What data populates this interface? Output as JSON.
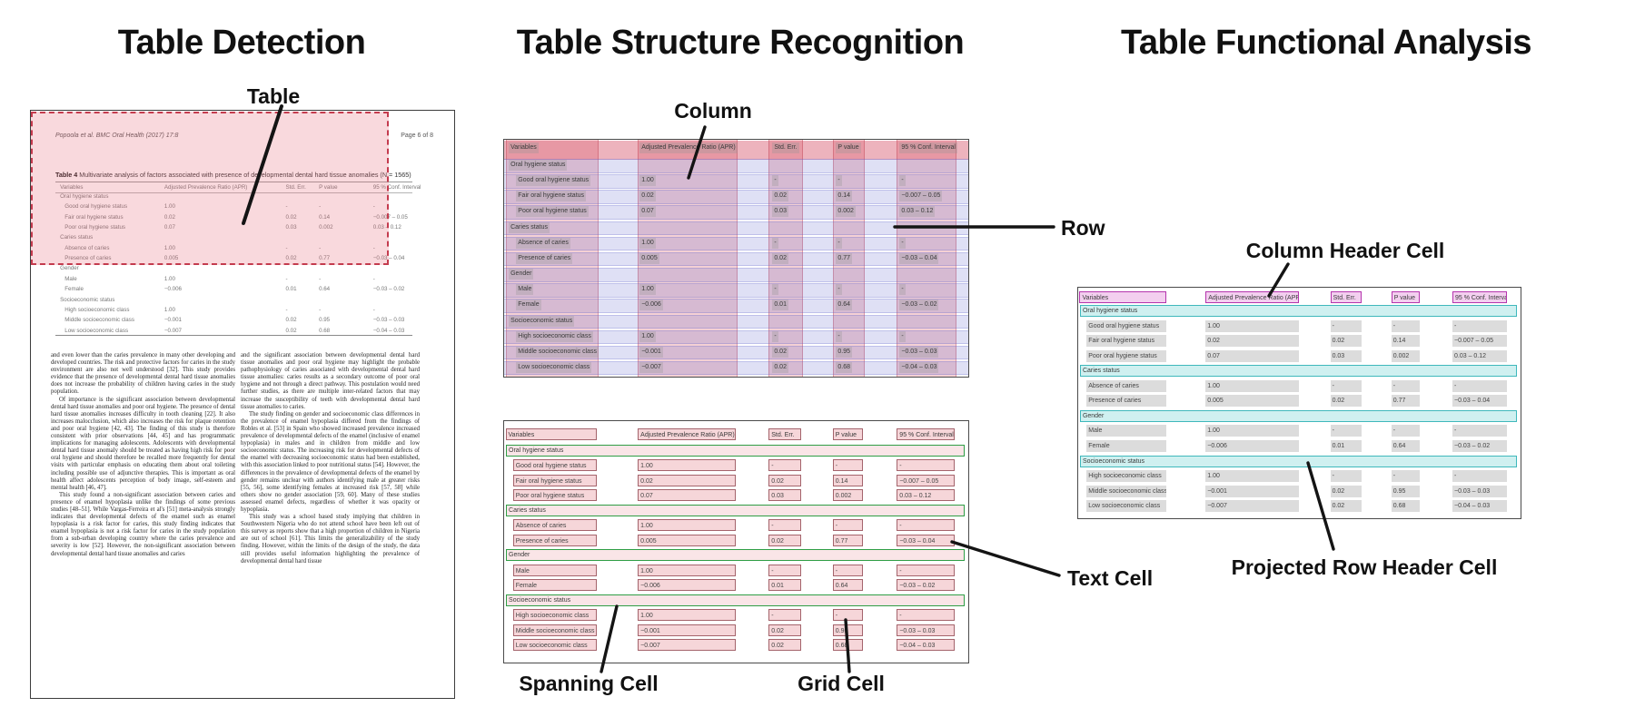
{
  "titles": {
    "detection": "Table Detection",
    "structure": "Table Structure Recognition",
    "functional": "Table Functional Analysis"
  },
  "annotations": {
    "table": "Table",
    "column": "Column",
    "row": "Row",
    "spanning_cell": "Spanning Cell",
    "text_cell": "Text Cell",
    "grid_cell": "Grid Cell",
    "column_header_cell": "Column Header Cell",
    "projected_row_header_cell": "Projected Row Header Cell"
  },
  "document": {
    "running_header_left": "Popoola et al. BMC Oral Health  (2017) 17:8",
    "running_header_right": "Page 6 of 8",
    "caption_label": "Table 4",
    "caption_text": " Multivariate analysis of factors associated with presence of developmental dental hard tissue anomalies (N = 1565)",
    "body_col1": [
      "and even lower than the caries prevalence in many other developing and developed countries. The risk and protective factors for caries in the study environment are also not well understood [32]. This study provides evidence that the presence of developmental dental hard tissue anomalies does not increase the probability of children having caries in the study population.",
      "Of importance is the significant association between developmental dental hard tissue anomalies and poor oral hygiene. The presence of dental hard tissue anomalies increases difficulty in tooth cleaning [22]. It also increases malocclusion, which also increases the risk for plaque retention and poor oral hygiene [42, 43]. The finding of this study is therefore consistent with prior observations [44, 45] and has programmatic implications for managing adolescents. Adolescents with developmental dental hard tissue anomaly should be treated as having high risk for poor oral hygiene and should therefore be recalled more frequently for dental visits with particular emphasis on educating them about oral toileting including possible use of adjunctive therapies. This is important as oral health affect adolescents perception of body image, self-esteem and mental health [46, 47].",
      "This study found a non-significant association between caries and presence of enamel hypoplasia unlike the findings of some previous studies [48–51]. While Vargas-Ferreira et al's [51] meta-analysis strongly indicates that developmental defects of the enamel such as enamel hypoplasia is a risk factor for caries, this study finding indicates that enamel hypoplasia is not a risk factor for caries in the study population from a sub-urban developing country where the caries prevalence and severity is low [52]. However, the non-significant association between developmental dental hard tissue anomalies and caries"
    ],
    "body_col2": [
      "and the significant association between developmental dental hard tissue anomalies and poor oral hygiene may highlight the probable pathophysiology of caries associated with developmental dental hard tissue anomalies: caries results as a secondary outcome of poor oral hygiene and not through a direct pathway. This postulation would need further studies, as there are multiple inter-related factors that may increase the susceptibility of teeth with developmental dental hard tissue anomalies to caries.",
      "The study finding on gender and socioeconomic class differences in the prevalence of enamel hypoplasia differed from the findings of Robles et al. [53] in Spain who showed increased prevalence increased prevalence of developmental defects of the enamel (inclusive of enamel hypoplasia) in males and in children from middle and low socioeconomic status. The increasing risk for developmental defects of the enamel with decreasing socioeconomic status had been established, with this association linked to poor nutritional status [54]. However, the differences in the prevalence of developmental defects of the enamel by gender remains unclear with authors identifying male at greater risks [55, 56], some identifying females at increased risk [57, 58] while others show no gender association [59, 60]. Many of these studies assessed enamel defects, regardless of whether it was opacity or hypoplasia.",
      "This study was a school based study implying that children in Southwestern Nigeria who do not attend school have been left out of this survey as reports show that a high proportion of children in Nigeria are out of school [61]. This limits the generalizability of the study finding. However, within the limits of the design of the study, the data still provides useful information highlighting the prevalence of developmental dental hard tissue"
    ]
  },
  "table": {
    "headers": [
      "Variables",
      "Adjusted Prevalence Ratio (APR)",
      "Std. Err.",
      "P value",
      "95 % Conf. Interval"
    ],
    "rows": [
      {
        "type": "section",
        "label": "Oral hygiene status",
        "values": [
          "",
          "",
          "",
          ""
        ]
      },
      {
        "type": "data",
        "label": "Good oral hygiene status",
        "values": [
          "1.00",
          "-",
          "-",
          "-"
        ]
      },
      {
        "type": "data",
        "label": "Fair oral hygiene status",
        "values": [
          "0.02",
          "0.02",
          "0.14",
          "−0.007 – 0.05"
        ]
      },
      {
        "type": "data",
        "label": "Poor oral hygiene status",
        "values": [
          "0.07",
          "0.03",
          "0.002",
          "0.03 – 0.12"
        ]
      },
      {
        "type": "section",
        "label": "Caries status",
        "values": [
          "",
          "",
          "",
          ""
        ]
      },
      {
        "type": "data",
        "label": "Absence of caries",
        "values": [
          "1.00",
          "-",
          "-",
          "-"
        ]
      },
      {
        "type": "data",
        "label": "Presence of caries",
        "values": [
          "0.005",
          "0.02",
          "0.77",
          "−0.03 – 0.04"
        ]
      },
      {
        "type": "section",
        "label": "Gender",
        "values": [
          "",
          "",
          "",
          ""
        ]
      },
      {
        "type": "data",
        "label": "Male",
        "values": [
          "1.00",
          "-",
          "-",
          "-"
        ]
      },
      {
        "type": "data",
        "label": "Female",
        "values": [
          "−0.006",
          "0.01",
          "0.64",
          "−0.03 – 0.02"
        ]
      },
      {
        "type": "section",
        "label": "Socioeconomic status",
        "values": [
          "",
          "",
          "",
          ""
        ]
      },
      {
        "type": "data",
        "label": "High socioeconomic class",
        "values": [
          "1.00",
          "-",
          "-",
          "-"
        ]
      },
      {
        "type": "data",
        "label": "Middle socioeconomic class",
        "values": [
          "−0.001",
          "0.02",
          "0.95",
          "−0.03 – 0.03"
        ]
      },
      {
        "type": "data",
        "label": "Low socioeconomic class",
        "values": [
          "−0.007",
          "0.02",
          "0.68",
          "−0.04 – 0.03"
        ]
      }
    ]
  },
  "colors": {
    "detection_box": "#c43b4e",
    "detection_fill": "#f0c6cb",
    "column_band": "#e9c2c8",
    "row_band": "#dfe1f4",
    "header_band": "#e3a2ae",
    "text_chip_gray": "#dcdcdc",
    "cell_border": "#a4646c",
    "cell_fill": "#f6d6d9",
    "spanning_border": "#2f9e45",
    "column_header_border": "#b535ad",
    "column_header_fill": "#f3cfef",
    "projected_border": "#3fb8bc",
    "projected_fill": "#cff0f0",
    "pointer_line": "#141414"
  }
}
